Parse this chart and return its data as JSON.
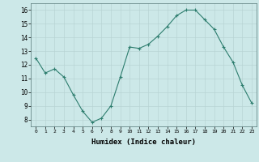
{
  "x": [
    0,
    1,
    2,
    3,
    4,
    5,
    6,
    7,
    8,
    9,
    10,
    11,
    12,
    13,
    14,
    15,
    16,
    17,
    18,
    19,
    20,
    21,
    22,
    23
  ],
  "y": [
    12.5,
    11.4,
    11.7,
    11.1,
    9.8,
    8.6,
    7.8,
    8.1,
    9.0,
    11.1,
    13.3,
    13.2,
    13.5,
    14.1,
    14.8,
    15.6,
    16.0,
    16.0,
    15.3,
    14.6,
    13.3,
    12.2,
    10.5,
    9.2
  ],
  "line_color": "#2d7d6e",
  "marker": "+",
  "marker_color": "#2d7d6e",
  "bg_color": "#cce8e8",
  "grid_color": "#b8d4d4",
  "xlabel": "Humidex (Indice chaleur)",
  "ylabel_ticks": [
    8,
    9,
    10,
    11,
    12,
    13,
    14,
    15,
    16
  ],
  "ylim": [
    7.5,
    16.5
  ],
  "xlim": [
    -0.5,
    23.5
  ]
}
